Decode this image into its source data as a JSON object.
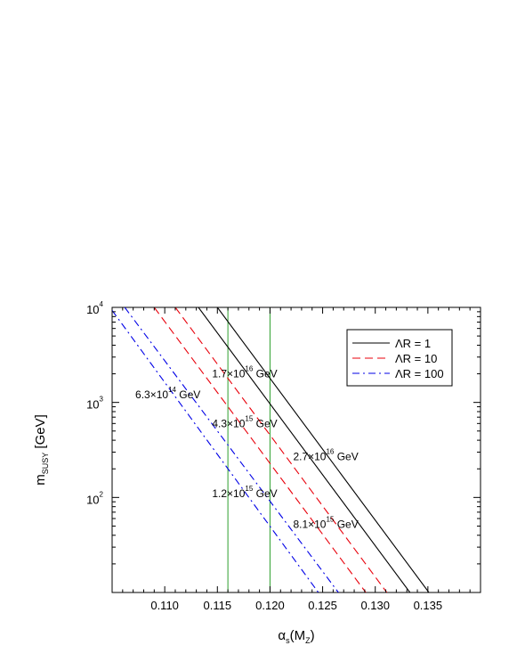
{
  "chart_data": {
    "type": "line",
    "xlabel": {
      "main": "α",
      "sub": "s",
      "rest": "(M",
      "sub2": "Z",
      "end": ")"
    },
    "ylabel": {
      "main": "m",
      "sub": "SUSY",
      "rest": "  [GeV]"
    },
    "xlim": [
      0.105,
      0.14
    ],
    "ylim": [
      10,
      10000
    ],
    "yscale": "log",
    "x_ticks": [
      "0.110",
      "0.115",
      "0.120",
      "0.125",
      "0.130",
      "0.135"
    ],
    "x_tick_values": [
      0.11,
      0.115,
      0.12,
      0.125,
      0.13,
      0.135
    ],
    "y_ticks": [
      {
        "value": 100,
        "base": "10",
        "exp": "2"
      },
      {
        "value": 1000,
        "base": "10",
        "exp": "3"
      },
      {
        "value": 10000,
        "base": "10",
        "exp": "4"
      }
    ],
    "vertical_lines": [
      {
        "x": 0.116,
        "color": "#2ca02c"
      },
      {
        "x": 0.12,
        "color": "#2ca02c"
      }
    ],
    "legend": {
      "position": "top-right",
      "entries": [
        {
          "label": "ΛR = 1",
          "color": "#000000",
          "dash": "solid"
        },
        {
          "label": "ΛR = 10",
          "color": "#e8000b",
          "dash": "dashed"
        },
        {
          "label": "ΛR = 100",
          "color": "#0000e6",
          "dash": "dashdot"
        }
      ]
    },
    "series": [
      {
        "group": "ΛR = 1",
        "color": "#000000",
        "dash": "solid",
        "points": [
          [
            0.1132,
            10000
          ],
          [
            0.1333,
            10
          ]
        ]
      },
      {
        "group": "ΛR = 1",
        "color": "#000000",
        "dash": "solid",
        "points": [
          [
            0.115,
            10000
          ],
          [
            0.1351,
            10
          ]
        ]
      },
      {
        "group": "ΛR = 10",
        "color": "#e8000b",
        "dash": "dashed",
        "points": [
          [
            0.109,
            10000
          ],
          [
            0.1291,
            10
          ]
        ]
      },
      {
        "group": "ΛR = 10",
        "color": "#e8000b",
        "dash": "dashed",
        "points": [
          [
            0.111,
            10000
          ],
          [
            0.1311,
            10
          ]
        ]
      },
      {
        "group": "ΛR = 100",
        "color": "#0000e6",
        "dash": "dashdot",
        "points": [
          [
            0.105,
            9300
          ],
          [
            0.1246,
            10
          ]
        ]
      },
      {
        "group": "ΛR = 100",
        "color": "#0000e6",
        "dash": "dashdot",
        "points": [
          [
            0.1062,
            10000
          ],
          [
            0.1265,
            10
          ]
        ]
      }
    ],
    "annotations": [
      {
        "mantissa": "1.7×10",
        "exp": "16",
        "unit": " GeV",
        "x": 0.1145,
        "y": 2000
      },
      {
        "mantissa": "6.3×10",
        "exp": "14",
        "unit": " GeV",
        "x": 0.1072,
        "y": 1200
      },
      {
        "mantissa": "4.3×10",
        "exp": "15",
        "unit": " GeV",
        "x": 0.1145,
        "y": 600
      },
      {
        "mantissa": "2.7×10",
        "exp": "16",
        "unit": " GeV",
        "x": 0.1222,
        "y": 270
      },
      {
        "mantissa": "1.2×10",
        "exp": "15",
        "unit": " GeV",
        "x": 0.1145,
        "y": 110
      },
      {
        "mantissa": "8.1×10",
        "exp": "15",
        "unit": " GeV",
        "x": 0.1222,
        "y": 52
      }
    ]
  }
}
